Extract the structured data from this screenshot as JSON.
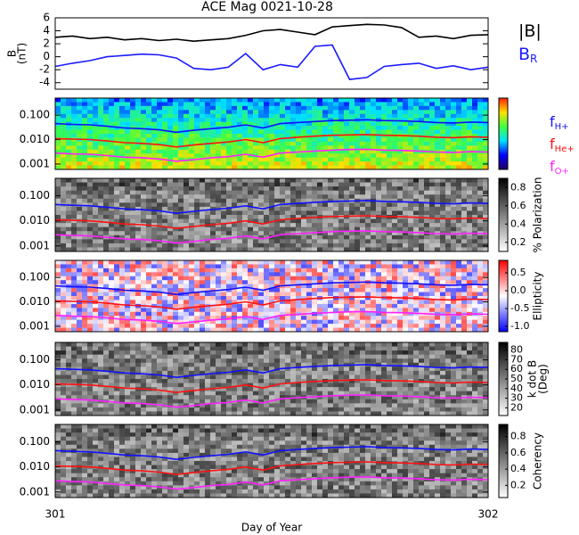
{
  "chart_data": [
    {
      "type": "line",
      "title": "ACE Mag 0021-10-28",
      "ylabel": [
        "B",
        "(nT)"
      ],
      "xlim": [
        301,
        302
      ],
      "ylim": [
        -5,
        6
      ],
      "yticks": [
        -4,
        -2,
        0,
        2,
        4,
        6
      ],
      "x": [
        301.0,
        301.04,
        301.08,
        301.12,
        301.16,
        301.2,
        301.24,
        301.28,
        301.32,
        301.36,
        301.4,
        301.44,
        301.48,
        301.52,
        301.56,
        301.6,
        301.64,
        301.68,
        301.72,
        301.76,
        301.8,
        301.84,
        301.88,
        301.92,
        301.96,
        302.0
      ],
      "series": [
        {
          "name": "|B|",
          "color": "#000000",
          "values": [
            3.0,
            3.2,
            2.8,
            3.0,
            2.6,
            2.8,
            2.5,
            2.7,
            2.4,
            2.6,
            2.8,
            3.3,
            4.0,
            4.2,
            3.8,
            3.4,
            4.6,
            4.8,
            5.0,
            4.9,
            4.5,
            3.0,
            3.2,
            2.8,
            3.3,
            3.4
          ]
        },
        {
          "name": "B",
          "subscript": "R",
          "color": "#1a1aff",
          "values": [
            -1.5,
            -1.0,
            -0.6,
            0.0,
            0.2,
            0.4,
            0.3,
            -0.2,
            -1.8,
            -2.0,
            -1.6,
            0.5,
            -2.0,
            -1.2,
            -1.6,
            1.6,
            1.8,
            -3.5,
            -3.2,
            -1.5,
            -1.2,
            -1.0,
            -1.8,
            -1.4,
            -2.0,
            -1.6
          ]
        }
      ]
    },
    {
      "type": "spectrogram",
      "colormap": "jet",
      "log": true,
      "xlim": [
        301,
        302
      ],
      "ylim": [
        0.0006,
        0.5
      ],
      "yticks": [
        0.001,
        {
          "value": 0.01,
          "label": "0.010"
        },
        {
          "value": 0.1,
          "label": "0.100"
        }
      ],
      "x": [
        301.0,
        301.04,
        301.08,
        301.12,
        301.16,
        301.2,
        301.24,
        301.28,
        301.32,
        301.36,
        301.4,
        301.44,
        301.48,
        301.52,
        301.56,
        301.6,
        301.64,
        301.68,
        301.72,
        301.76,
        301.8,
        301.84,
        301.88,
        301.92,
        301.96,
        302.0
      ],
      "series": [
        {
          "name": "f",
          "subscript": "H+",
          "color": "#1010ff",
          "values": [
            0.045,
            0.042,
            0.04,
            0.035,
            0.03,
            0.028,
            0.025,
            0.02,
            0.024,
            0.028,
            0.032,
            0.04,
            0.03,
            0.045,
            0.05,
            0.055,
            0.06,
            0.062,
            0.065,
            0.06,
            0.058,
            0.055,
            0.05,
            0.048,
            0.052,
            0.05
          ]
        },
        {
          "name": "f",
          "subscript": "He+",
          "color": "#ff1010",
          "values": [
            0.011,
            0.0105,
            0.01,
            0.0088,
            0.0075,
            0.007,
            0.0062,
            0.005,
            0.006,
            0.007,
            0.008,
            0.01,
            0.0075,
            0.011,
            0.0125,
            0.0138,
            0.015,
            0.0155,
            0.016,
            0.015,
            0.0145,
            0.0138,
            0.0125,
            0.012,
            0.013,
            0.0125
          ]
        },
        {
          "name": "f",
          "subscript": "O+",
          "color": "#ff20ff",
          "values": [
            0.0028,
            0.0026,
            0.0025,
            0.0022,
            0.0019,
            0.0018,
            0.0016,
            0.0013,
            0.0015,
            0.0018,
            0.002,
            0.0025,
            0.0019,
            0.0028,
            0.0031,
            0.0034,
            0.0037,
            0.0039,
            0.004,
            0.0037,
            0.0036,
            0.0034,
            0.0031,
            0.003,
            0.0032,
            0.0031
          ]
        }
      ]
    },
    {
      "type": "spectrogram",
      "colormap": "gray",
      "log": true,
      "xlim": [
        301,
        302
      ],
      "ylim": [
        0.0006,
        0.5
      ],
      "yticks": [
        0.001,
        {
          "value": 0.01,
          "label": "0.010"
        },
        {
          "value": 0.1,
          "label": "0.100"
        }
      ],
      "colorbar": {
        "label": [
          "% Polarization"
        ],
        "lim": [
          0.1,
          0.9
        ],
        "ticks": [
          0.2,
          0.4,
          0.6,
          0.8
        ]
      }
    },
    {
      "type": "spectrogram",
      "colormap": "rwb",
      "log": true,
      "xlim": [
        301,
        302
      ],
      "ylim": [
        0.0006,
        0.5
      ],
      "yticks": [
        0.001,
        {
          "value": 0.01,
          "label": "0.010"
        },
        {
          "value": 0.1,
          "label": "0.100"
        }
      ],
      "colorbar": {
        "label": [
          "Ellipticity"
        ],
        "lim": [
          -1.15,
          0.85
        ],
        "ticks": [
          {
            "value": -1,
            "label": "-1.0"
          },
          -0.5,
          {
            "value": 0,
            "label": "0.0"
          },
          0.5
        ]
      }
    },
    {
      "type": "spectrogram",
      "colormap": "gray",
      "log": true,
      "xlim": [
        301,
        302
      ],
      "ylim": [
        0.0006,
        0.5
      ],
      "yticks": [
        0.001,
        {
          "value": 0.01,
          "label": "0.010"
        },
        {
          "value": 0.1,
          "label": "0.100"
        }
      ],
      "colorbar": {
        "label": [
          "k dot B",
          "(Deg)"
        ],
        "lim": [
          12,
          88
        ],
        "ticks": [
          20,
          30,
          40,
          50,
          60,
          70,
          80
        ]
      }
    },
    {
      "type": "spectrogram",
      "colormap": "gray",
      "log": true,
      "xlim": [
        301,
        302
      ],
      "ylim": [
        0.0006,
        0.5
      ],
      "yticks": [
        0.001,
        {
          "value": 0.01,
          "label": "0.010"
        },
        {
          "value": 0.1,
          "label": "0.100"
        }
      ],
      "colorbar": {
        "label": [
          "Coherency"
        ],
        "lim": [
          0.05,
          0.95
        ],
        "ticks": [
          0.2,
          0.4,
          0.6,
          0.8
        ]
      },
      "xticks": [
        301,
        302
      ],
      "xlabel": "Day of Year"
    }
  ]
}
